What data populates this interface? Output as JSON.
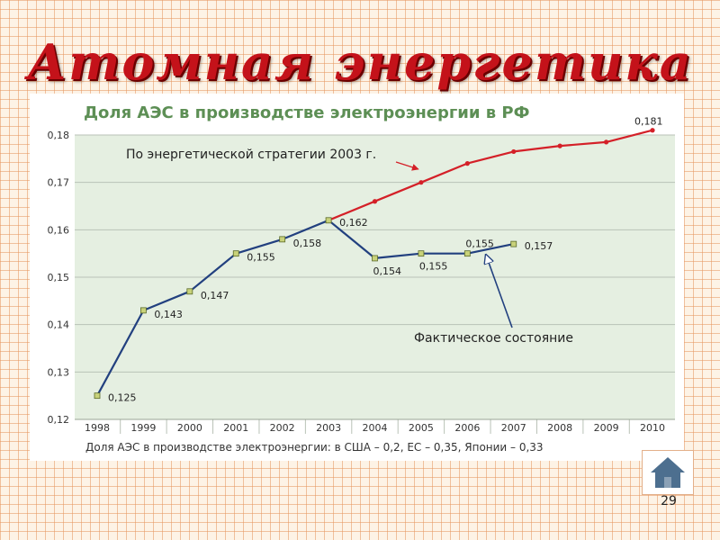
{
  "slide": {
    "title": "Атомная энергетика",
    "page_number": "29"
  },
  "home_button": {
    "icon": "home-icon",
    "color": "#4d6f8f"
  },
  "chart_data": {
    "type": "line",
    "title": "Доля АЭС в производстве электроэнергии в РФ",
    "footnote": "Доля АЭС в производстве электроэнергии: в США – 0,2, ЕС – 0,35, Японии – 0,33",
    "xlabel": "",
    "ylabel": "",
    "x": [
      "1998",
      "1999",
      "2000",
      "2001",
      "2002",
      "2003",
      "2004",
      "2005",
      "2006",
      "2007",
      "2008",
      "2009",
      "2010"
    ],
    "ylim": [
      0.12,
      0.18
    ],
    "y_ticks": [
      "0,12",
      "0,13",
      "0,14",
      "0,15",
      "0,16",
      "0,17",
      "0,18"
    ],
    "grid": true,
    "plot_background": "#e5efe1",
    "title_color": "#5d8f55",
    "series": [
      {
        "name": "Фактическое состояние",
        "color": "#22407f",
        "x": [
          "1998",
          "1999",
          "2000",
          "2001",
          "2002",
          "2003",
          "2004",
          "2005",
          "2006",
          "2007"
        ],
        "values": [
          0.125,
          0.143,
          0.147,
          0.155,
          0.158,
          0.162,
          0.154,
          0.155,
          0.155,
          0.157
        ],
        "labels": [
          "0,125",
          "0,143",
          "0,147",
          "0,155",
          "0,158",
          "0,162",
          "0,154",
          "0,155",
          "0,155",
          "0,157"
        ]
      },
      {
        "name": "По энергетической стратегии 2003 г.",
        "color": "#d42028",
        "x": [
          "2003",
          "2004",
          "2005",
          "2006",
          "2007",
          "2008",
          "2009",
          "2010"
        ],
        "values": [
          0.162,
          0.166,
          0.17,
          0.174,
          0.1765,
          0.1777,
          0.1785,
          0.181
        ],
        "labels": [
          "",
          "",
          "",
          "",
          "",
          "",
          "",
          "0,181"
        ]
      }
    ],
    "annotations": [
      {
        "text": "По энергетической стратегии 2003 г.",
        "series": 1,
        "points_to": "2005"
      },
      {
        "text": "Фактическое состояние",
        "series": 0,
        "points_to": "2006.4"
      }
    ]
  }
}
